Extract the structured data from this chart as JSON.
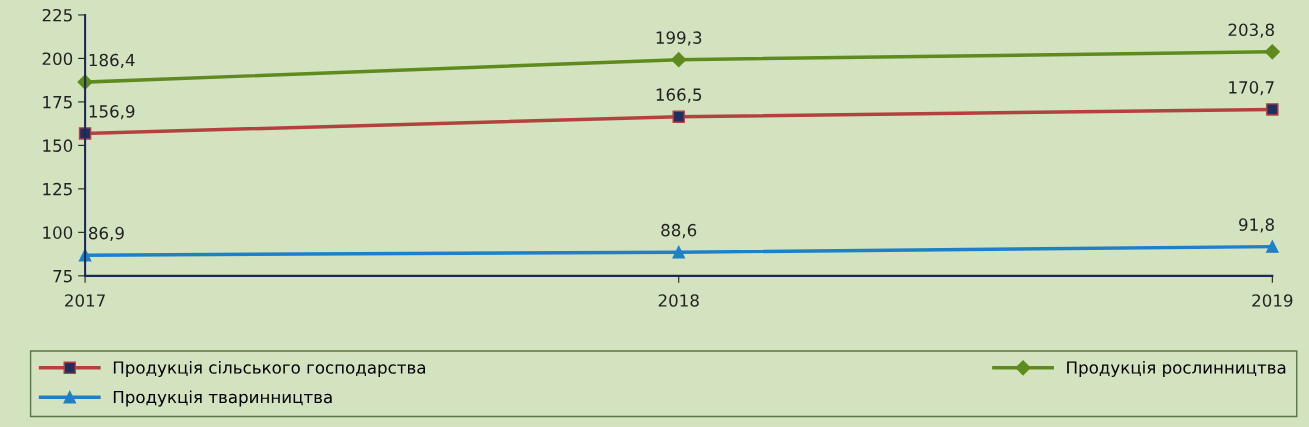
{
  "chart_data": {
    "type": "line",
    "x": [
      2017,
      2018,
      2019
    ],
    "xlim": [
      2017,
      2019
    ],
    "xticks": [
      2017,
      2018,
      2019
    ],
    "ylim": [
      75,
      225
    ],
    "yticks": [
      75,
      100,
      125,
      150,
      175,
      200,
      225
    ],
    "series": [
      {
        "name": "Продукція сільського господарства",
        "color": "#b5413f",
        "marker": "square",
        "values": [
          156.9,
          166.5,
          170.7
        ],
        "value_labels": [
          "156,9",
          "166,5",
          "170,7"
        ]
      },
      {
        "name": "Продукція рослинництва",
        "color": "#5f8a1e",
        "marker": "diamond",
        "values": [
          186.4,
          199.3,
          203.8
        ],
        "value_labels": [
          "186,4",
          "199,3",
          "203,8"
        ]
      },
      {
        "name": "Продукція тваринництва",
        "color": "#1f80c8",
        "marker": "triangle",
        "values": [
          86.9,
          88.6,
          91.8
        ],
        "value_labels": [
          "86,9",
          "88,6",
          "91,8"
        ]
      }
    ],
    "grid": false,
    "legend": "bottom",
    "line_style": "solid"
  }
}
